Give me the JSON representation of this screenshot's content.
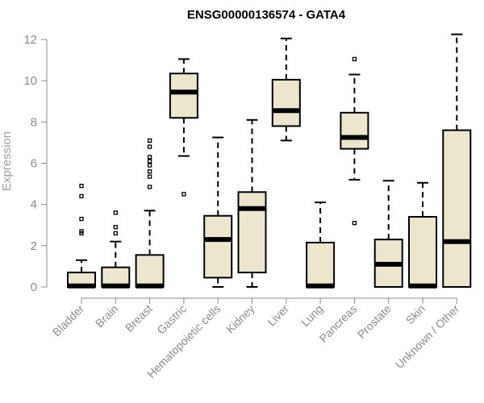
{
  "chart_data": {
    "type": "boxplot",
    "title": "ENSG00000136574 - GATA4",
    "xlabel": "",
    "ylabel": "Expression",
    "ylim": [
      0,
      12.5
    ],
    "yticks": [
      0,
      2,
      4,
      6,
      8,
      10,
      12
    ],
    "box_fill": "#ede6cf",
    "box_stroke": "#000000",
    "categories": [
      "Bladder",
      "Brain",
      "Breast",
      "Gastric",
      "Hematopoietic cells",
      "Kidney",
      "Liver",
      "Lung",
      "Pancreas",
      "Prostate",
      "Skin",
      "Unknown / Other"
    ],
    "boxes": [
      {
        "category": "Bladder",
        "whisker_low": 0,
        "q1": 0,
        "median": 0.05,
        "q3": 0.7,
        "whisker_high": 1.3,
        "outliers": [
          2.6,
          2.7,
          3.3,
          4.4,
          4.9
        ]
      },
      {
        "category": "Brain",
        "whisker_low": 0,
        "q1": 0,
        "median": 0.05,
        "q3": 0.95,
        "whisker_high": 2.2,
        "outliers": [
          2.6,
          2.9,
          3.6
        ]
      },
      {
        "category": "Breast",
        "whisker_low": 0,
        "q1": 0,
        "median": 0.05,
        "q3": 1.55,
        "whisker_high": 3.7,
        "outliers": [
          4.85,
          5.35,
          5.6,
          5.9,
          6.1,
          6.3,
          6.8,
          7.1
        ]
      },
      {
        "category": "Gastric",
        "whisker_low": 6.35,
        "q1": 8.2,
        "median": 9.45,
        "q3": 10.35,
        "whisker_high": 11.05,
        "outliers": [
          4.5
        ]
      },
      {
        "category": "Hematopoietic cells",
        "whisker_low": 0,
        "q1": 0.45,
        "median": 2.3,
        "q3": 3.45,
        "whisker_high": 7.25,
        "outliers": []
      },
      {
        "category": "Kidney",
        "whisker_low": 0,
        "q1": 0.7,
        "median": 3.8,
        "q3": 4.6,
        "whisker_high": 8.1,
        "outliers": []
      },
      {
        "category": "Liver",
        "whisker_low": 7.1,
        "q1": 7.8,
        "median": 8.55,
        "q3": 10.05,
        "whisker_high": 12.05,
        "outliers": []
      },
      {
        "category": "Lung",
        "whisker_low": 0,
        "q1": 0,
        "median": 0.05,
        "q3": 2.15,
        "whisker_high": 4.1,
        "outliers": []
      },
      {
        "category": "Pancreas",
        "whisker_low": 5.2,
        "q1": 6.7,
        "median": 7.25,
        "q3": 8.45,
        "whisker_high": 10.3,
        "outliers": [
          3.1,
          11.05
        ]
      },
      {
        "category": "Prostate",
        "whisker_low": 0,
        "q1": 0,
        "median": 1.1,
        "q3": 2.3,
        "whisker_high": 5.15,
        "outliers": []
      },
      {
        "category": "Skin",
        "whisker_low": 0,
        "q1": 0,
        "median": 0.05,
        "q3": 3.4,
        "whisker_high": 5.05,
        "outliers": []
      },
      {
        "category": "Unknown / Other",
        "whisker_low": 0,
        "q1": 0,
        "median": 2.2,
        "q3": 7.6,
        "whisker_high": 12.25,
        "outliers": []
      }
    ]
  }
}
